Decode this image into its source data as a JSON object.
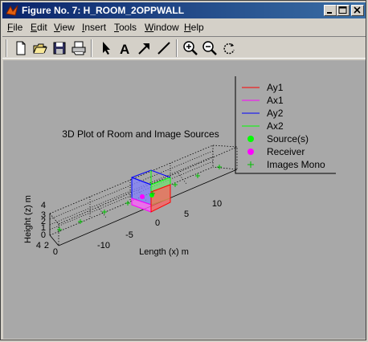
{
  "window": {
    "title": "Figure No. 7: H_ROOM_2OPPWALL"
  },
  "menubar": {
    "items": [
      {
        "label": "File",
        "key": "F"
      },
      {
        "label": "Edit",
        "key": "E"
      },
      {
        "label": "View",
        "key": "V"
      },
      {
        "label": "Insert",
        "key": "I"
      },
      {
        "label": "Tools",
        "key": "T"
      },
      {
        "label": "Window",
        "key": "W"
      },
      {
        "label": "Help",
        "key": "H"
      }
    ]
  },
  "toolbar": {
    "icons": [
      "new-file-icon",
      "open-folder-icon",
      "save-icon",
      "print-icon",
      "arrow-select-icon",
      "text-insert-icon",
      "arrow-insert-icon",
      "line-insert-icon",
      "zoom-in-icon",
      "zoom-out-icon",
      "rotate-3d-icon"
    ]
  },
  "plot": {
    "title": "3D Plot of Room and Image Sources",
    "xlabel": "Length (x) m",
    "zlabel": "Height (z) m",
    "x_ticks": [
      "-10",
      "-5",
      "0",
      "5",
      "10"
    ],
    "y_ticks": [
      "4",
      "2",
      "0"
    ],
    "z_ticks": [
      "4",
      "3",
      "2",
      "1",
      "0"
    ],
    "legend": [
      {
        "label": "Ay1",
        "color": "#ff0000",
        "marker": "line"
      },
      {
        "label": "Ax1",
        "color": "#ff00ff",
        "marker": "line"
      },
      {
        "label": "Ay2",
        "color": "#0000ff",
        "marker": "line"
      },
      {
        "label": "Ax2",
        "color": "#00ff00",
        "marker": "line"
      },
      {
        "label": "Source(s)",
        "color": "#00ff00",
        "marker": "dot"
      },
      {
        "label": "Receiver",
        "color": "#ff00ff",
        "marker": "dot"
      },
      {
        "label": "Images Mono",
        "color": "#00c000",
        "marker": "plus"
      }
    ]
  },
  "colors": {
    "figure_bg": "#a8a8a8",
    "title_bar": "#0a246a",
    "face_blue": "#8080ff",
    "face_red": "#ff6060",
    "face_green": "#70e070",
    "face_magenta": "#ff60ff"
  }
}
